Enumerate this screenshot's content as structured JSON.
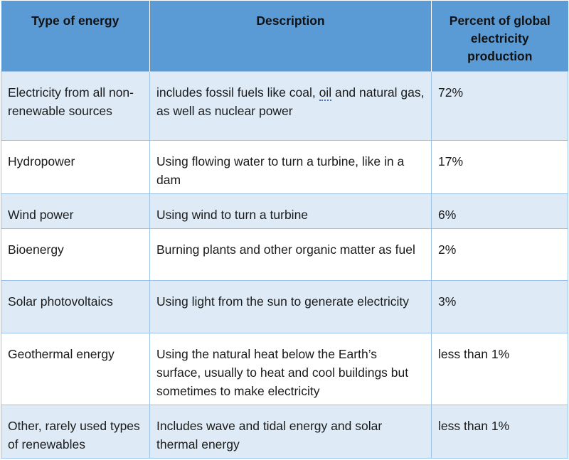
{
  "header": {
    "col1": "Type of energy",
    "col2": "Description",
    "col3": "Percent of global electricity production"
  },
  "rows": [
    {
      "type": "Electricity from all non-renewable sources",
      "desc_pre": "includes fossil fuels like coal, ",
      "desc_mark": "oil",
      "desc_post": " and natural gas, as well as nuclear power",
      "percent": "72%"
    },
    {
      "type": "Hydropower",
      "desc": "Using flowing water to turn a turbine, like in a dam",
      "percent": "17%"
    },
    {
      "type": "Wind power",
      "desc": "Using wind to turn a turbine",
      "percent": "6%"
    },
    {
      "type": "Bioenergy",
      "desc": "Burning plants and other organic matter as fuel",
      "percent": "2%"
    },
    {
      "type": "Solar photovoltaics",
      "desc": "Using light from the sun to generate electricity",
      "percent": "3%"
    },
    {
      "type": "Geothermal energy",
      "desc": "Using the natural heat below the Earth’s surface, usually to heat and cool buildings but sometimes to make electricity",
      "percent": "less than 1%"
    },
    {
      "type": "Other, rarely used types of renewables",
      "desc": "Includes wave and tidal energy and solar thermal energy",
      "percent": "less than 1%"
    }
  ]
}
